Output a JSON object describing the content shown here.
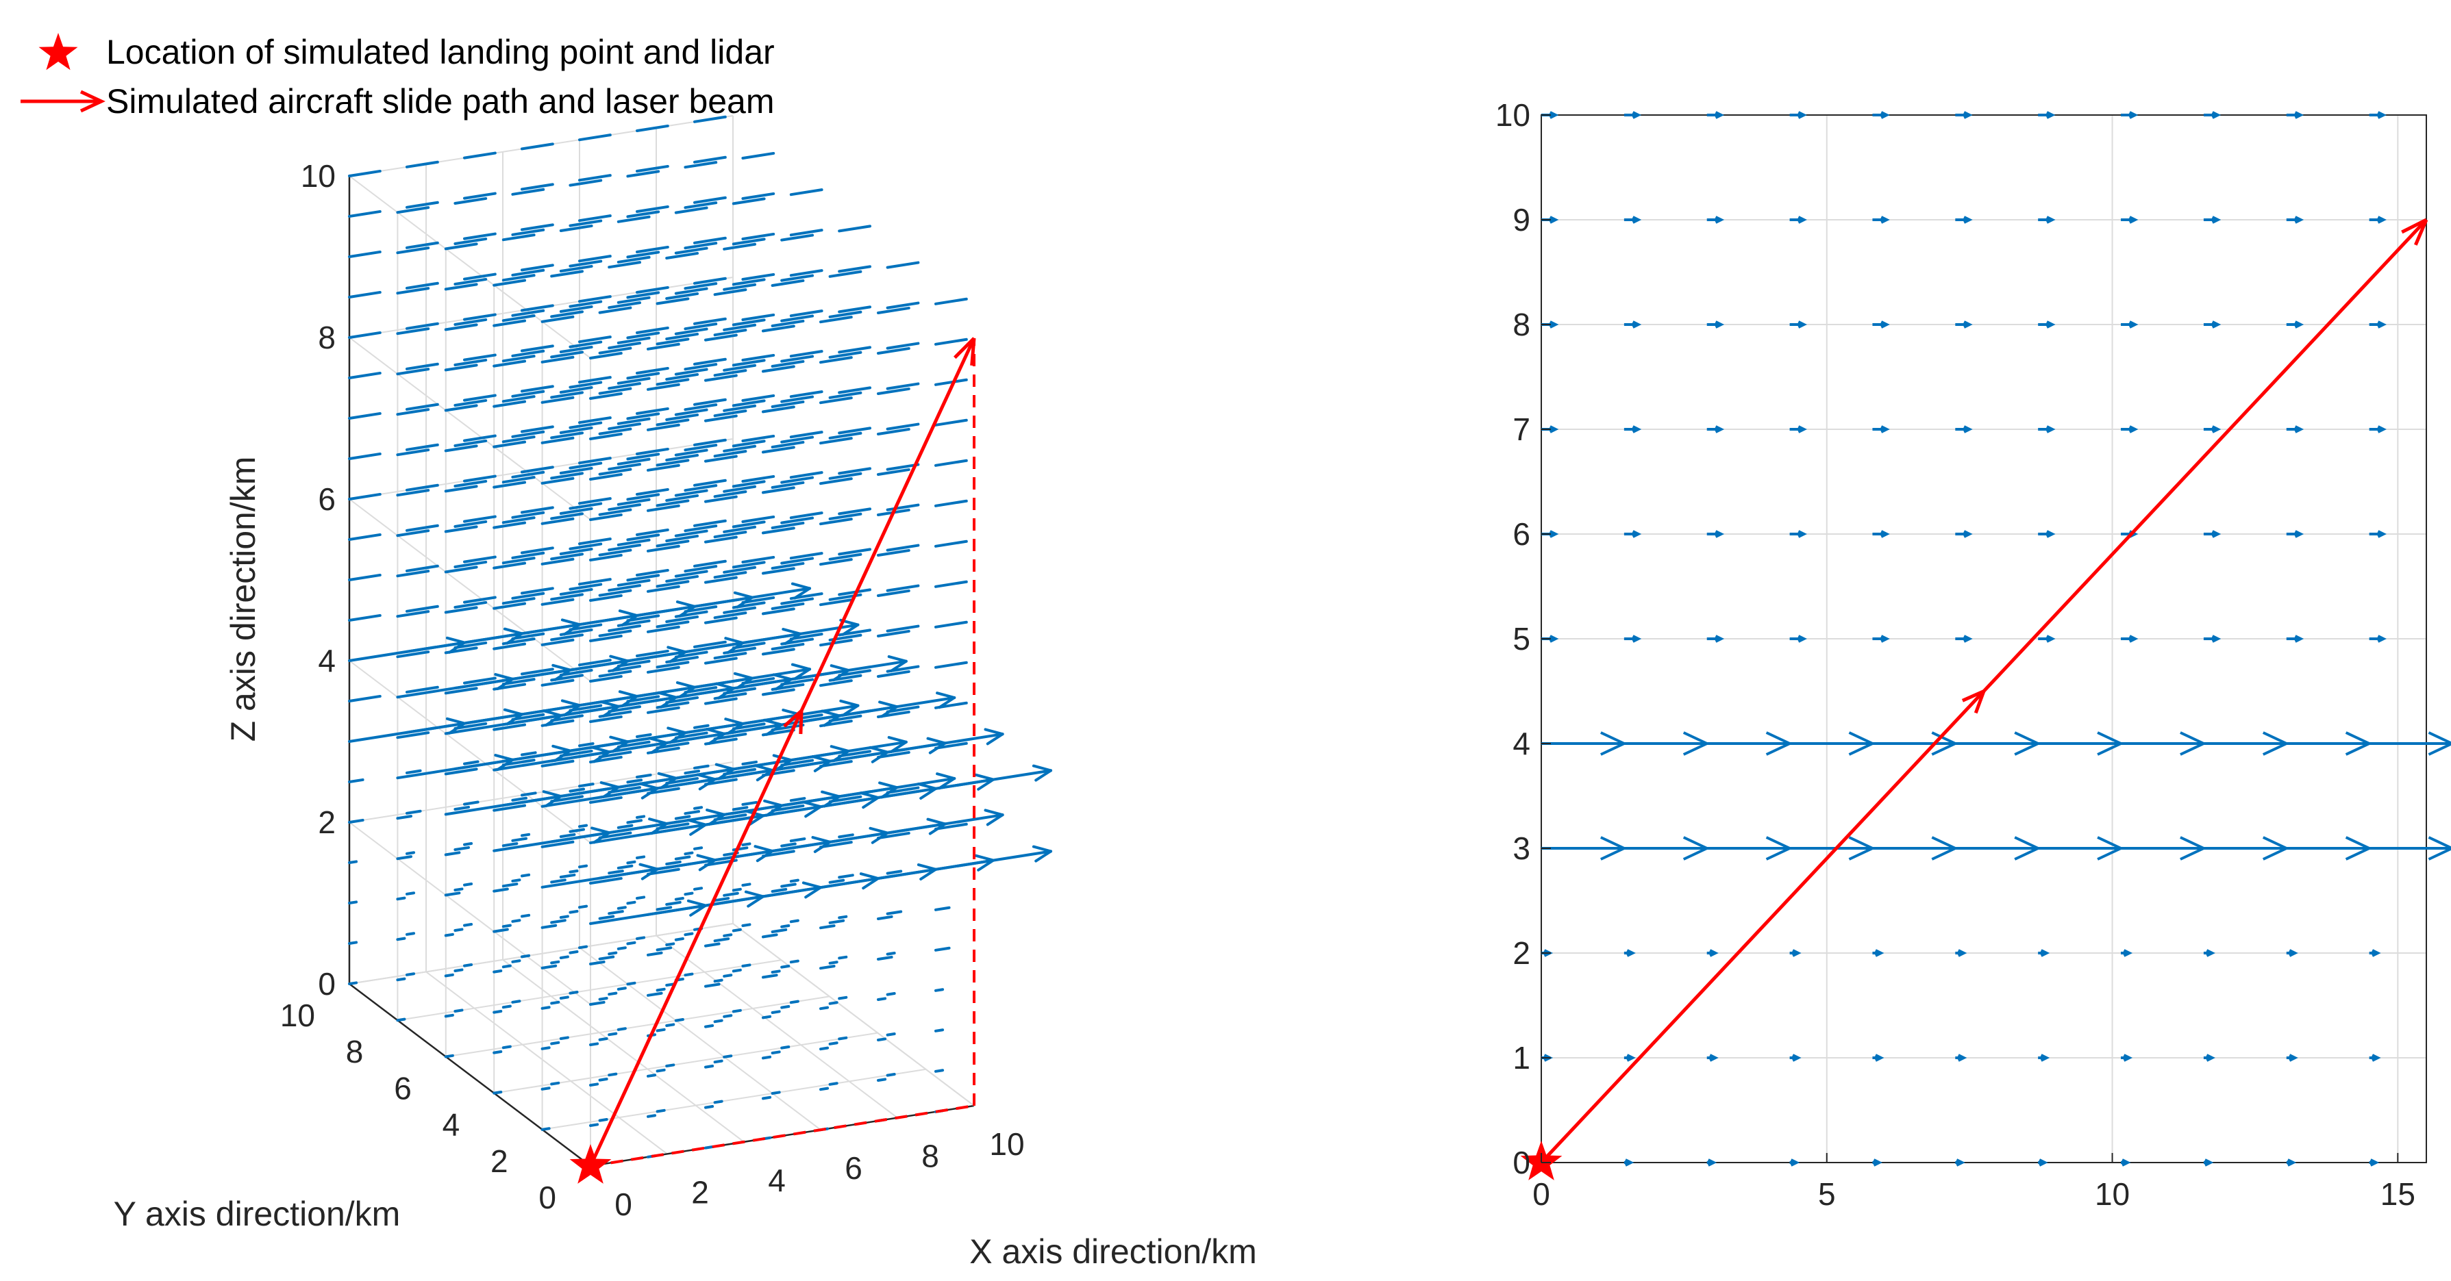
{
  "legend": {
    "entries": [
      {
        "label": "Location of simulated landing point and lidar",
        "marker": "star",
        "color": "#ff0000"
      },
      {
        "label": "Simulated aircraft slide path and laser beam",
        "marker": "arrow",
        "color": "#ff0000"
      }
    ],
    "placement": "top-left"
  },
  "colors": {
    "quiver": "#0072bd",
    "path": "#ff0000",
    "grid": "#dcdcdc",
    "axis": "#262626"
  },
  "chart_data": [
    {
      "type": "quiver3d",
      "xlabel": "X axis direction/km",
      "ylabel": "Y axis direction/km",
      "zlabel": "Z axis direction/km",
      "xlim": [
        0,
        10
      ],
      "ylim": [
        0,
        10
      ],
      "zlim": [
        0,
        10
      ],
      "xticks": [
        "0",
        "2",
        "4",
        "6",
        "8",
        "10"
      ],
      "yticks": [
        "0",
        "2",
        "4",
        "6",
        "8",
        "10"
      ],
      "zticks": [
        "0",
        "2",
        "4",
        "6",
        "8",
        "10"
      ],
      "grid": true,
      "wind_field": {
        "direction": "+x",
        "strong_layers_z": [
          3,
          4
        ],
        "strong_speed": 1.0,
        "weak_speed": 0.15
      },
      "landing_point": [
        0,
        0,
        0
      ],
      "slide_path": {
        "from": [
          0,
          0,
          0
        ],
        "to": [
          10,
          0,
          9.5
        ]
      },
      "projection": {
        "from": [
          0,
          0,
          0
        ],
        "to": [
          10,
          0,
          0
        ],
        "style": "dashed",
        "color": "#ff0000"
      }
    },
    {
      "type": "quiver2d",
      "xticks": [
        "0",
        "5",
        "10",
        "15"
      ],
      "yticks": [
        "0",
        "1",
        "2",
        "3",
        "4",
        "5",
        "6",
        "7",
        "8",
        "9",
        "10"
      ],
      "xlim": [
        0,
        15.5
      ],
      "ylim": [
        0,
        10
      ],
      "grid": true,
      "rows_y": [
        0,
        1,
        2,
        3,
        4,
        5,
        6,
        7,
        8,
        9,
        10
      ],
      "cols_x": [
        0,
        1.45,
        2.9,
        4.35,
        5.8,
        7.25,
        8.7,
        10.15,
        11.6,
        13.05,
        14.5
      ],
      "strong_rows_y": [
        3,
        4
      ],
      "strong_arrow_length": 1.45,
      "weak_arrow_length": 0.25,
      "landing_point": [
        0,
        0
      ],
      "slide_path": {
        "from": [
          0,
          0
        ],
        "to": [
          15.5,
          9
        ],
        "mid_arrow_at": 0.5
      }
    }
  ]
}
